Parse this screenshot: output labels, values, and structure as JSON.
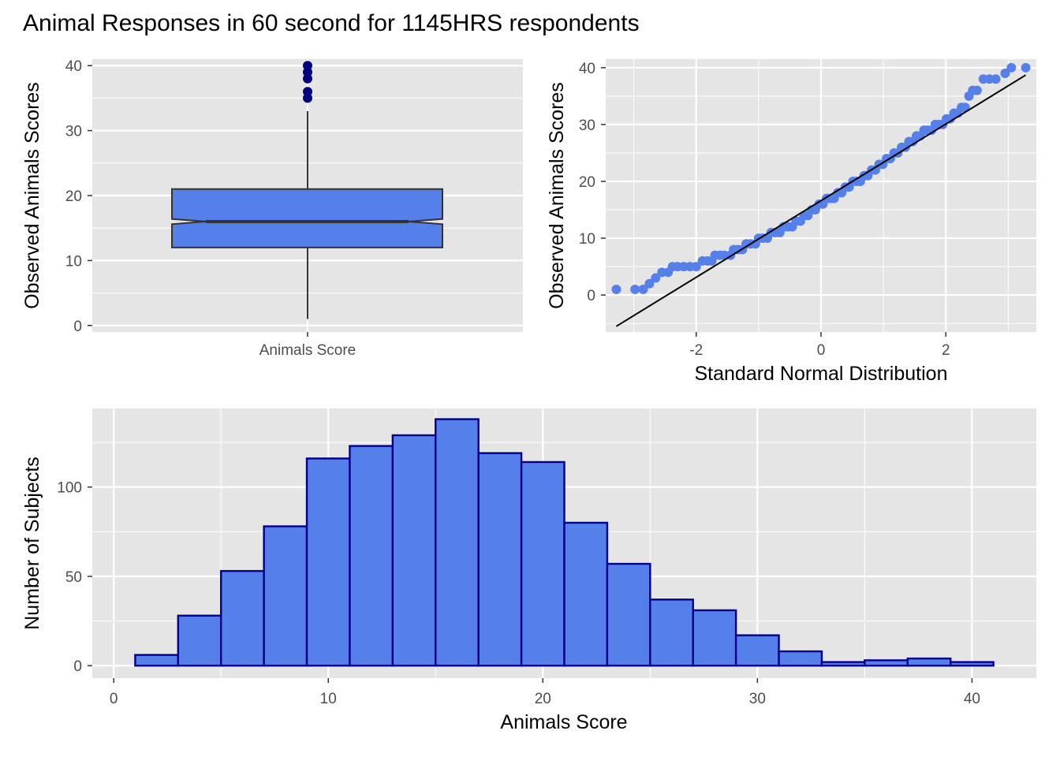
{
  "title": "Animal Responses in 60 second for 1145HRS respondents",
  "colors": {
    "panel_bg": "#e5e5e5",
    "grid": "#ffffff",
    "fill": "#5580ea",
    "hist_border": "#00008b",
    "outlier": "#000080",
    "box_border": "#333333",
    "qq_point": "#5580ea",
    "qq_line": "#000000"
  },
  "chart_data": [
    {
      "type": "box",
      "category": "Animals Score",
      "ylabel": "Observed Animals Scores",
      "xlabel": "",
      "ylim": [
        -1,
        41
      ],
      "yticks": [
        0,
        10,
        20,
        30,
        40
      ],
      "notched": true,
      "min": 1,
      "q1": 12,
      "median": 16,
      "q3": 21,
      "max": 33,
      "notch": [
        15.6,
        16.4
      ],
      "outliers": [
        35,
        36,
        38,
        39,
        40
      ]
    },
    {
      "type": "scatter",
      "subtype": "qq",
      "xlabel": "Standard Normal Distribution",
      "ylabel": "Observed Animals Scores",
      "xlim": [
        -3.45,
        3.45
      ],
      "ylim": [
        -6.5,
        41.5
      ],
      "xticks": [
        -2,
        0,
        2
      ],
      "yticks": [
        0,
        10,
        20,
        30,
        40
      ],
      "points": [
        [
          -3.28,
          1
        ],
        [
          -2.98,
          1
        ],
        [
          -2.85,
          1
        ],
        [
          -2.75,
          2
        ],
        [
          -2.65,
          3
        ],
        [
          -2.55,
          4
        ],
        [
          -2.45,
          4
        ],
        [
          -2.38,
          5
        ],
        [
          -2.3,
          5
        ],
        [
          -2.2,
          5
        ],
        [
          -2.1,
          5
        ],
        [
          -2.0,
          5
        ],
        [
          -1.9,
          6
        ],
        [
          -1.82,
          6
        ],
        [
          -1.75,
          6
        ],
        [
          -1.7,
          7
        ],
        [
          -1.62,
          7
        ],
        [
          -1.55,
          7
        ],
        [
          -1.45,
          7
        ],
        [
          -1.4,
          8
        ],
        [
          -1.33,
          8
        ],
        [
          -1.26,
          8
        ],
        [
          -1.2,
          9
        ],
        [
          -1.13,
          9
        ],
        [
          -1.05,
          9
        ],
        [
          -1.0,
          10
        ],
        [
          -0.93,
          10
        ],
        [
          -0.86,
          10
        ],
        [
          -0.8,
          11
        ],
        [
          -0.73,
          11
        ],
        [
          -0.66,
          11
        ],
        [
          -0.6,
          12
        ],
        [
          -0.53,
          12
        ],
        [
          -0.46,
          12
        ],
        [
          -0.4,
          13
        ],
        [
          -0.33,
          13
        ],
        [
          -0.27,
          14
        ],
        [
          -0.21,
          14
        ],
        [
          -0.15,
          15
        ],
        [
          -0.09,
          15
        ],
        [
          -0.03,
          16
        ],
        [
          0.03,
          16
        ],
        [
          0.09,
          17
        ],
        [
          0.15,
          17
        ],
        [
          0.21,
          17
        ],
        [
          0.27,
          18
        ],
        [
          0.33,
          18
        ],
        [
          0.39,
          19
        ],
        [
          0.45,
          19
        ],
        [
          0.51,
          20
        ],
        [
          0.57,
          20
        ],
        [
          0.63,
          20
        ],
        [
          0.69,
          21
        ],
        [
          0.75,
          21
        ],
        [
          0.81,
          22
        ],
        [
          0.87,
          22
        ],
        [
          0.93,
          23
        ],
        [
          0.99,
          23
        ],
        [
          1.05,
          24
        ],
        [
          1.11,
          24
        ],
        [
          1.17,
          25
        ],
        [
          1.23,
          25
        ],
        [
          1.29,
          26
        ],
        [
          1.35,
          26
        ],
        [
          1.41,
          27
        ],
        [
          1.47,
          27
        ],
        [
          1.53,
          28
        ],
        [
          1.59,
          28
        ],
        [
          1.65,
          29
        ],
        [
          1.71,
          29
        ],
        [
          1.77,
          29
        ],
        [
          1.83,
          30
        ],
        [
          1.89,
          30
        ],
        [
          1.95,
          30
        ],
        [
          2.01,
          31
        ],
        [
          2.07,
          31
        ],
        [
          2.13,
          32
        ],
        [
          2.19,
          32
        ],
        [
          2.25,
          33
        ],
        [
          2.31,
          33
        ],
        [
          2.37,
          35
        ],
        [
          2.43,
          36
        ],
        [
          2.5,
          36
        ],
        [
          2.6,
          38
        ],
        [
          2.7,
          38
        ],
        [
          2.8,
          38
        ],
        [
          2.95,
          39
        ],
        [
          3.05,
          40
        ],
        [
          3.28,
          40
        ]
      ],
      "line": {
        "x": [
          -3.28,
          3.28
        ],
        "y": [
          -5.5,
          38.7
        ]
      }
    },
    {
      "type": "bar",
      "subtype": "histogram",
      "xlabel": "Animals Score",
      "ylabel": "Number of Subjects",
      "xlim": [
        -1,
        43
      ],
      "ylim": [
        -7,
        144
      ],
      "xticks": [
        0,
        10,
        20,
        30,
        40
      ],
      "yticks": [
        0,
        50,
        100
      ],
      "binwidth": 2,
      "bin_starts": [
        1,
        3,
        5,
        7,
        9,
        11,
        13,
        15,
        17,
        19,
        21,
        23,
        25,
        27,
        29,
        31,
        33,
        35,
        37,
        39
      ],
      "values": [
        6,
        28,
        53,
        78,
        116,
        123,
        129,
        138,
        119,
        114,
        80,
        57,
        37,
        31,
        17,
        8,
        2,
        3,
        4,
        2
      ]
    }
  ]
}
